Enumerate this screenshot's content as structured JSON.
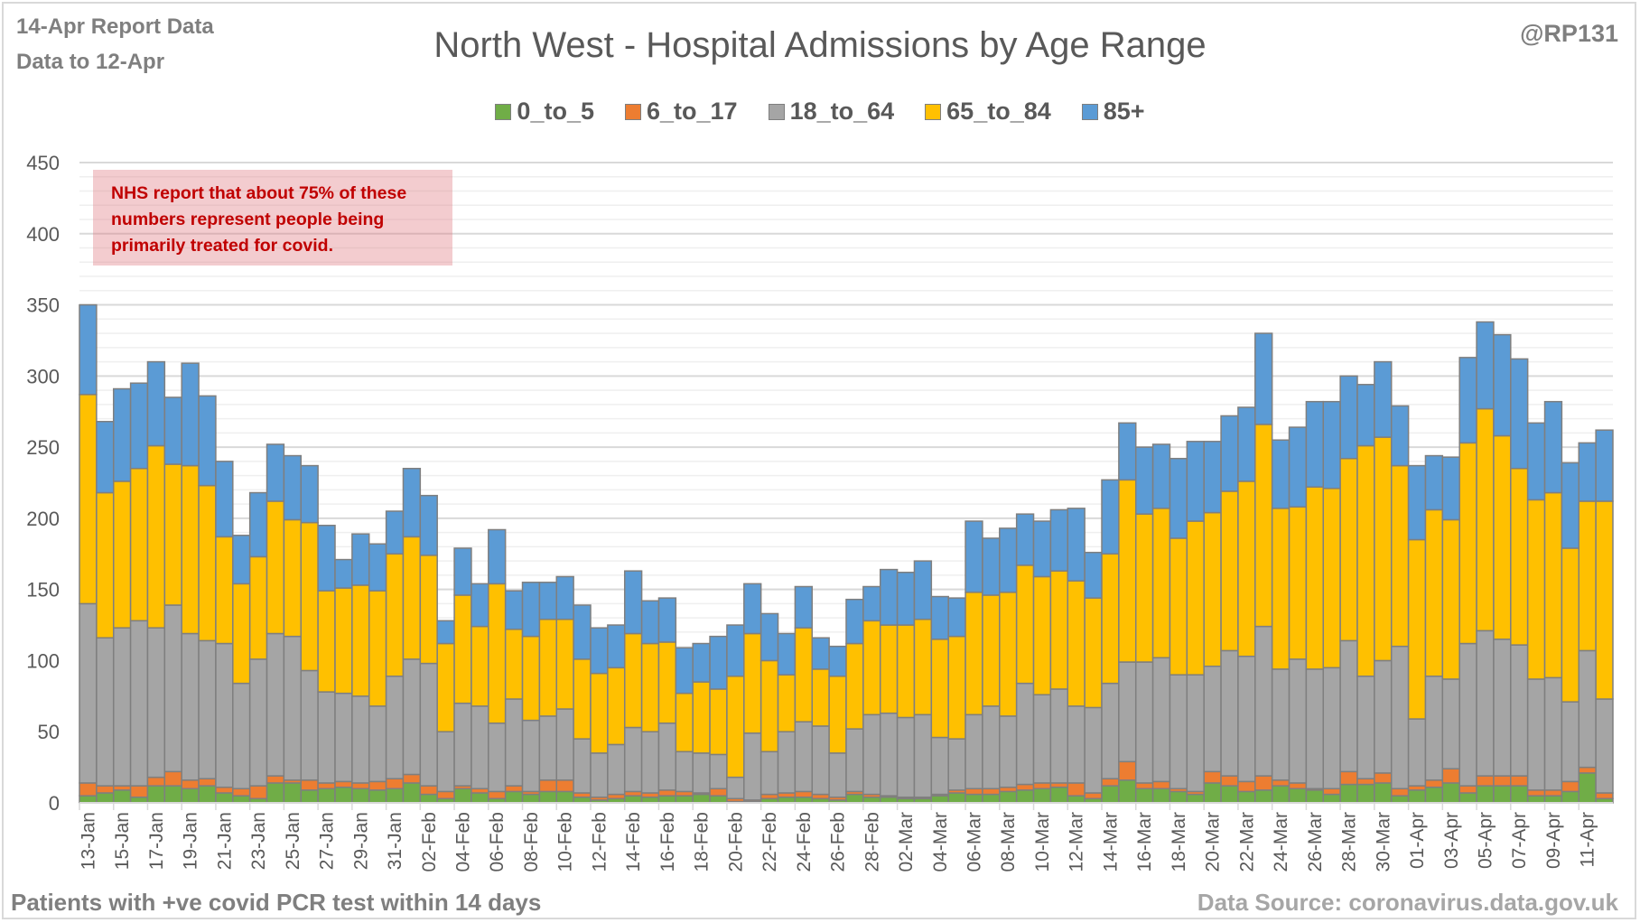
{
  "header": {
    "report_line": "14-Apr Report Data",
    "data_line": "Data to 12-Apr",
    "handle": "@RP131"
  },
  "annotation": {
    "lines": [
      "NHS report that about 75% of these",
      "numbers represent people being",
      "primarily treated for covid."
    ]
  },
  "footer": {
    "left": "Patients with  +ve covid PCR test within 14 days",
    "right": "Data Source: coronavirus.data.gov.uk"
  },
  "colors": {
    "0_to_5": "#70ad47",
    "6_to_17": "#ed7d31",
    "18_to_64": "#a5a5a5",
    "65_to_84": "#ffc000",
    "85+": "#5b9bd5",
    "bar_outline": "#7f7f7f"
  },
  "chart_data": {
    "type": "bar",
    "stacked": true,
    "title": "North West - Hospital Admissions by Age Range",
    "xlabel": "",
    "ylabel": "",
    "ylim": [
      0,
      450
    ],
    "yticks": [
      0,
      50,
      100,
      150,
      200,
      250,
      300,
      350,
      400,
      450
    ],
    "grid": true,
    "legend_position": "top-center",
    "categories": [
      "13-Jan",
      "14-Jan",
      "15-Jan",
      "16-Jan",
      "17-Jan",
      "18-Jan",
      "19-Jan",
      "20-Jan",
      "21-Jan",
      "22-Jan",
      "23-Jan",
      "24-Jan",
      "25-Jan",
      "26-Jan",
      "27-Jan",
      "28-Jan",
      "29-Jan",
      "30-Jan",
      "31-Jan",
      "01-Feb",
      "02-Feb",
      "03-Feb",
      "04-Feb",
      "05-Feb",
      "06-Feb",
      "07-Feb",
      "08-Feb",
      "09-Feb",
      "10-Feb",
      "11-Feb",
      "12-Feb",
      "13-Feb",
      "14-Feb",
      "15-Feb",
      "16-Feb",
      "17-Feb",
      "18-Feb",
      "19-Feb",
      "20-Feb",
      "21-Feb",
      "22-Feb",
      "23-Feb",
      "24-Feb",
      "25-Feb",
      "26-Feb",
      "27-Feb",
      "28-Feb",
      "01-Mar",
      "02-Mar",
      "03-Mar",
      "04-Mar",
      "05-Mar",
      "06-Mar",
      "07-Mar",
      "08-Mar",
      "09-Mar",
      "10-Mar",
      "11-Mar",
      "12-Mar",
      "13-Mar",
      "14-Mar",
      "15-Mar",
      "16-Mar",
      "17-Mar",
      "18-Mar",
      "19-Mar",
      "20-Mar",
      "21-Mar",
      "22-Mar",
      "23-Mar",
      "24-Mar",
      "25-Mar",
      "26-Mar",
      "27-Mar",
      "28-Mar",
      "29-Mar",
      "30-Mar",
      "31-Mar",
      "01-Apr",
      "02-Apr",
      "03-Apr",
      "04-Apr",
      "05-Apr",
      "06-Apr",
      "07-Apr",
      "08-Apr",
      "09-Apr",
      "10-Apr",
      "11-Apr",
      "12-Apr"
    ],
    "tick_labels": [
      "13-Jan",
      "15-Jan",
      "17-Jan",
      "19-Jan",
      "21-Jan",
      "23-Jan",
      "25-Jan",
      "27-Jan",
      "29-Jan",
      "31-Jan",
      "02-Feb",
      "04-Feb",
      "06-Feb",
      "08-Feb",
      "10-Feb",
      "12-Feb",
      "14-Feb",
      "16-Feb",
      "18-Feb",
      "20-Feb",
      "22-Feb",
      "24-Feb",
      "26-Feb",
      "28-Feb",
      "02-Mar",
      "04-Mar",
      "06-Mar",
      "08-Mar",
      "10-Mar",
      "12-Mar",
      "14-Mar",
      "16-Mar",
      "18-Mar",
      "20-Mar",
      "22-Mar",
      "24-Mar",
      "26-Mar",
      "28-Mar",
      "30-Mar",
      "01-Apr",
      "03-Apr",
      "05-Apr",
      "07-Apr",
      "09-Apr",
      "11-Apr"
    ],
    "series": [
      {
        "name": "0_to_5",
        "values": [
          5,
          7,
          9,
          4,
          12,
          12,
          10,
          12,
          7,
          5,
          3,
          14,
          14,
          9,
          10,
          11,
          10,
          9,
          10,
          14,
          6,
          3,
          10,
          7,
          3,
          8,
          6,
          8,
          8,
          4,
          2,
          3,
          5,
          4,
          5,
          5,
          6,
          5,
          1,
          1,
          3,
          4,
          4,
          3,
          2,
          6,
          4,
          4,
          3,
          3,
          5,
          7,
          6,
          6,
          8,
          9,
          10,
          11,
          5,
          3,
          12,
          16,
          10,
          10,
          8,
          6,
          14,
          12,
          8,
          9,
          12,
          10,
          9,
          6,
          13,
          13,
          14,
          5,
          9,
          11,
          14,
          7,
          12,
          12,
          12,
          5,
          5,
          8,
          21,
          3
        ]
      },
      {
        "name": "6_to_17",
        "values": [
          9,
          5,
          3,
          8,
          6,
          10,
          6,
          5,
          4,
          5,
          9,
          5,
          2,
          7,
          4,
          4,
          4,
          6,
          7,
          6,
          6,
          5,
          2,
          3,
          5,
          4,
          2,
          8,
          8,
          3,
          2,
          3,
          3,
          3,
          4,
          3,
          1,
          5,
          2,
          1,
          3,
          3,
          4,
          3,
          2,
          2,
          2,
          1,
          1,
          1,
          1,
          2,
          4,
          4,
          3,
          4,
          4,
          3,
          9,
          4,
          5,
          13,
          4,
          5,
          2,
          2,
          8,
          7,
          7,
          10,
          4,
          4,
          1,
          4,
          9,
          4,
          7,
          5,
          3,
          5,
          10,
          5,
          7,
          7,
          7,
          4,
          4,
          7,
          4,
          4
        ]
      },
      {
        "name": "18_to_64",
        "values": [
          126,
          104,
          111,
          116,
          105,
          117,
          103,
          97,
          101,
          74,
          89,
          100,
          101,
          77,
          64,
          62,
          61,
          53,
          72,
          81,
          86,
          42,
          58,
          58,
          48,
          61,
          50,
          45,
          50,
          38,
          31,
          35,
          45,
          43,
          47,
          28,
          28,
          24,
          15,
          47,
          30,
          43,
          49,
          48,
          31,
          44,
          56,
          58,
          56,
          58,
          40,
          36,
          52,
          58,
          50,
          71,
          62,
          66,
          54,
          60,
          67,
          70,
          85,
          87,
          80,
          82,
          74,
          88,
          88,
          105,
          78,
          87,
          84,
          85,
          92,
          72,
          79,
          100,
          47,
          73,
          63,
          100,
          102,
          96,
          92,
          78,
          79,
          56,
          82,
          66
        ]
      },
      {
        "name": "65_to_84",
        "values": [
          147,
          102,
          103,
          107,
          128,
          99,
          118,
          109,
          75,
          70,
          72,
          93,
          82,
          104,
          71,
          74,
          78,
          81,
          86,
          86,
          76,
          62,
          76,
          56,
          98,
          49,
          59,
          68,
          63,
          56,
          56,
          54,
          66,
          62,
          57,
          41,
          50,
          46,
          71,
          70,
          64,
          40,
          66,
          40,
          54,
          60,
          66,
          62,
          65,
          67,
          69,
          72,
          86,
          78,
          87,
          83,
          83,
          83,
          88,
          77,
          91,
          128,
          104,
          105,
          96,
          108,
          108,
          112,
          123,
          142,
          113,
          107,
          128,
          126,
          128,
          162,
          157,
          127,
          126,
          117,
          112,
          141,
          156,
          143,
          124,
          126,
          130,
          108,
          105,
          139
        ]
      },
      {
        "name": "85+",
        "values": [
          63,
          50,
          65,
          60,
          59,
          47,
          72,
          63,
          53,
          34,
          45,
          40,
          45,
          40,
          46,
          20,
          36,
          33,
          30,
          48,
          42,
          16,
          33,
          30,
          38,
          27,
          38,
          26,
          30,
          38,
          32,
          30,
          44,
          30,
          31,
          32,
          27,
          37,
          36,
          35,
          33,
          29,
          29,
          22,
          21,
          31,
          24,
          39,
          37,
          41,
          30,
          27,
          50,
          40,
          45,
          36,
          39,
          43,
          51,
          32,
          52,
          40,
          47,
          45,
          56,
          56,
          50,
          53,
          52,
          64,
          48,
          56,
          60,
          61,
          58,
          43,
          53,
          42,
          52,
          38,
          44,
          60,
          61,
          71,
          77,
          54,
          64,
          60,
          41,
          50
        ]
      }
    ]
  }
}
